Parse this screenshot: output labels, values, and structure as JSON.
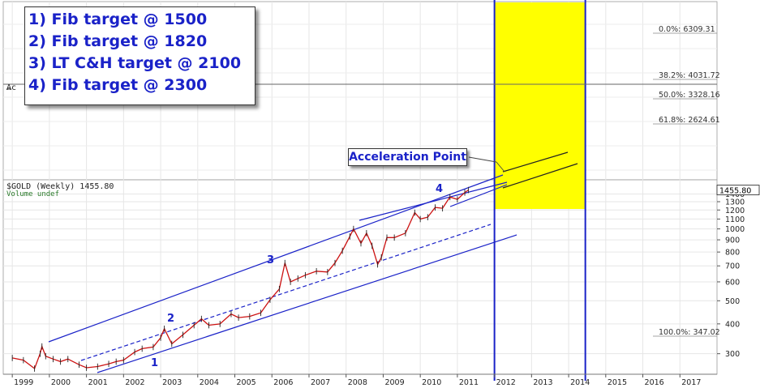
{
  "chart_data": {
    "type": "line",
    "symbol_label": "$GOLD (Weekly) 1455.80",
    "volume_label": "Volume undef",
    "ac_label": "Ac",
    "last_price": "1455.80",
    "yscale": "log",
    "ylim": [
      250,
      1520
    ],
    "xlim": [
      1998.8,
      2018.0
    ],
    "x_ticks": [
      "1999",
      "2000",
      "2001",
      "2002",
      "2003",
      "2004",
      "2005",
      "2006",
      "2007",
      "2008",
      "2009",
      "2010",
      "2011",
      "2012",
      "2013",
      "2014",
      "2015",
      "2016",
      "2017"
    ],
    "y_ticks": [
      300,
      400,
      500,
      600,
      700,
      800,
      900,
      1000,
      1100,
      1200,
      1300,
      1400
    ],
    "price_points": [
      [
        1999.0,
        288
      ],
      [
        1999.3,
        282
      ],
      [
        1999.6,
        260
      ],
      [
        1999.75,
        300
      ],
      [
        1999.8,
        322
      ],
      [
        1999.9,
        293
      ],
      [
        2000.1,
        285
      ],
      [
        2000.3,
        278
      ],
      [
        2000.5,
        285
      ],
      [
        2000.8,
        270
      ],
      [
        2001.0,
        262
      ],
      [
        2001.3,
        265
      ],
      [
        2001.6,
        272
      ],
      [
        2001.8,
        278
      ],
      [
        2002.0,
        282
      ],
      [
        2002.3,
        305
      ],
      [
        2002.5,
        315
      ],
      [
        2002.8,
        320
      ],
      [
        2003.0,
        350
      ],
      [
        2003.1,
        382
      ],
      [
        2003.3,
        330
      ],
      [
        2003.6,
        360
      ],
      [
        2003.9,
        395
      ],
      [
        2004.1,
        420
      ],
      [
        2004.3,
        395
      ],
      [
        2004.6,
        400
      ],
      [
        2004.9,
        440
      ],
      [
        2005.1,
        425
      ],
      [
        2005.4,
        430
      ],
      [
        2005.7,
        445
      ],
      [
        2005.95,
        505
      ],
      [
        2006.2,
        560
      ],
      [
        2006.35,
        720
      ],
      [
        2006.5,
        600
      ],
      [
        2006.7,
        620
      ],
      [
        2006.9,
        640
      ],
      [
        2007.2,
        665
      ],
      [
        2007.5,
        660
      ],
      [
        2007.7,
        720
      ],
      [
        2007.9,
        810
      ],
      [
        2008.1,
        930
      ],
      [
        2008.2,
        1000
      ],
      [
        2008.4,
        870
      ],
      [
        2008.55,
        960
      ],
      [
        2008.7,
        850
      ],
      [
        2008.85,
        710
      ],
      [
        2008.95,
        760
      ],
      [
        2009.1,
        920
      ],
      [
        2009.3,
        920
      ],
      [
        2009.6,
        960
      ],
      [
        2009.85,
        1170
      ],
      [
        2010.0,
        1100
      ],
      [
        2010.2,
        1120
      ],
      [
        2010.4,
        1230
      ],
      [
        2010.6,
        1220
      ],
      [
        2010.8,
        1360
      ],
      [
        2011.0,
        1330
      ],
      [
        2011.2,
        1420
      ],
      [
        2011.3,
        1455.8
      ]
    ],
    "fib_levels": [
      {
        "label": "0.0%: 6309.31"
      },
      {
        "label": "38.2%: 4031.72"
      },
      {
        "label": "50.0%: 3328.16"
      },
      {
        "label": "61.8%: 2624.61"
      },
      {
        "label": "100.0%: 347.02"
      }
    ],
    "wave_labels": [
      "1",
      "2",
      "3",
      "4"
    ],
    "target_zone": {
      "x_start": 2012.0,
      "x_end": 2014.45
    },
    "accent_colors": {
      "channel": "#1a22c8",
      "zone": "#ffff00",
      "price": "#cc1111",
      "callout_text": "#1a22c8"
    }
  },
  "callout": {
    "lines": [
      "1) Fib target @ 1500",
      "2) Fib target @ 1820",
      "3) LT C&H target @ 2100",
      "4) Fib target @ 2300"
    ]
  },
  "annotations": {
    "acceleration_label": "Acceleration Point"
  }
}
